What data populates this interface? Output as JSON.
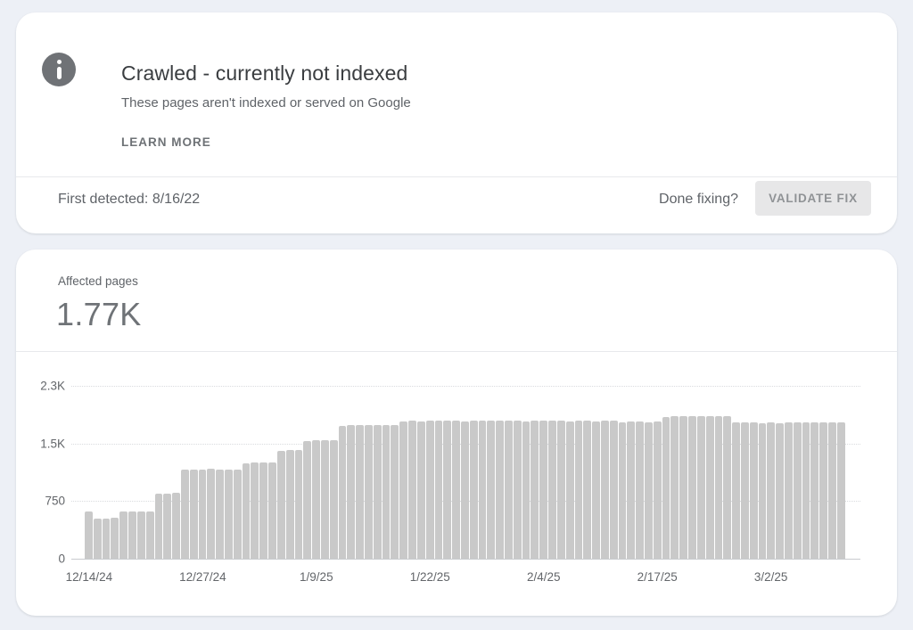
{
  "issue_card": {
    "title": "Crawled - currently not indexed",
    "subtitle": "These pages aren't indexed or served on Google",
    "learn_more_label": "LEARN MORE",
    "first_detected_label": "First detected: 8/16/22",
    "done_fixing_label": "Done fixing?",
    "validate_button_label": "VALIDATE FIX"
  },
  "metric_card": {
    "metric_label": "Affected pages",
    "metric_value": "1.77K"
  },
  "chart_data": {
    "type": "bar",
    "title": "Affected pages",
    "ylabel": "Affected pages",
    "xlabel": "",
    "ylim": [
      0,
      2250
    ],
    "grid": "horizontal-dotted",
    "legend_position": "none",
    "bar_color": "#c9c9c9",
    "y_ticks": [
      {
        "value": 0,
        "label": "0"
      },
      {
        "value": 750,
        "label": "750"
      },
      {
        "value": 1500,
        "label": "1.5K"
      },
      {
        "value": 2250,
        "label": "2.3K"
      }
    ],
    "x_ticks": [
      {
        "index": 0,
        "label": "12/14/24"
      },
      {
        "index": 13,
        "label": "12/27/24"
      },
      {
        "index": 26,
        "label": "1/9/25"
      },
      {
        "index": 39,
        "label": "1/22/25"
      },
      {
        "index": 52,
        "label": "2/4/25"
      },
      {
        "index": 65,
        "label": "2/17/25"
      },
      {
        "index": 78,
        "label": "3/2/25"
      }
    ],
    "values": [
      620,
      520,
      520,
      530,
      610,
      615,
      615,
      620,
      845,
      850,
      855,
      1160,
      1165,
      1165,
      1170,
      1165,
      1165,
      1160,
      1245,
      1250,
      1255,
      1250,
      1400,
      1410,
      1415,
      1530,
      1540,
      1545,
      1545,
      1730,
      1735,
      1740,
      1735,
      1740,
      1735,
      1740,
      1790,
      1795,
      1790,
      1800,
      1795,
      1800,
      1795,
      1790,
      1800,
      1795,
      1800,
      1795,
      1800,
      1795,
      1790,
      1800,
      1795,
      1800,
      1795,
      1790,
      1800,
      1795,
      1790,
      1800,
      1795,
      1780,
      1790,
      1785,
      1780,
      1790,
      1845,
      1850,
      1855,
      1850,
      1860,
      1855,
      1850,
      1850,
      1780,
      1775,
      1770,
      1765,
      1770,
      1765,
      1770,
      1775,
      1770,
      1775,
      1770,
      1775,
      1770
    ]
  },
  "colors": {
    "page_background": "#edf0f6",
    "card_background": "#ffffff",
    "info_icon_background": "#6f7276",
    "title_text": "#3a3d40",
    "secondary_text": "#5f6368",
    "validate_button_background": "#e7e7e8",
    "validate_button_text": "#8f9295",
    "bar_fill": "#c9c9c9",
    "gridline": "#d9dbde"
  }
}
